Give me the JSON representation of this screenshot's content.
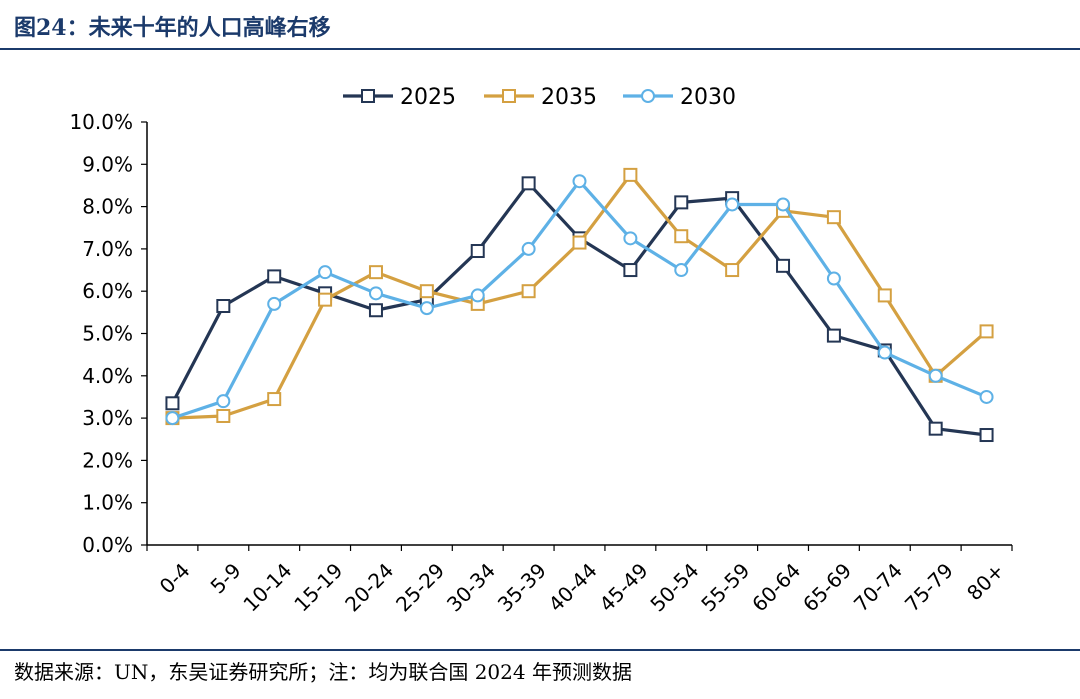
{
  "page": {
    "title": "图24：未来十年的人口高峰右移",
    "source": "数据来源：UN，东吴证券研究所；注：均为联合国 2024 年预测数据"
  },
  "chart_data": {
    "type": "line",
    "categories": [
      "0-4",
      "5-9",
      "10-14",
      "15-19",
      "20-24",
      "25-29",
      "30-34",
      "35-39",
      "40-44",
      "45-49",
      "50-54",
      "55-59",
      "60-64",
      "65-69",
      "70-74",
      "75-79",
      "80+"
    ],
    "series": [
      {
        "name": "2025",
        "color": "#243654",
        "marker": "square",
        "values": [
          3.35,
          5.65,
          6.35,
          5.95,
          5.55,
          5.8,
          6.95,
          8.55,
          7.25,
          6.5,
          8.1,
          8.2,
          6.6,
          4.95,
          4.6,
          2.75,
          2.6
        ]
      },
      {
        "name": "2035",
        "color": "#d4a041",
        "marker": "square",
        "values": [
          3.0,
          3.05,
          3.45,
          5.8,
          6.45,
          6.0,
          5.7,
          6.0,
          7.15,
          8.75,
          7.3,
          6.5,
          7.9,
          7.75,
          5.9,
          4.0,
          5.05
        ]
      },
      {
        "name": "2030",
        "color": "#5eb1e6",
        "marker": "circle",
        "values": [
          3.0,
          3.4,
          5.7,
          6.45,
          5.95,
          5.6,
          5.9,
          7.0,
          8.6,
          7.25,
          6.5,
          8.05,
          8.05,
          6.3,
          4.55,
          4.0,
          3.5
        ]
      }
    ],
    "ylim": [
      0,
      10
    ],
    "yticks": [
      "0.0%",
      "1.0%",
      "2.0%",
      "3.0%",
      "4.0%",
      "5.0%",
      "6.0%",
      "7.0%",
      "8.0%",
      "9.0%",
      "10.0%"
    ],
    "legend_position": "top-center",
    "grid": false
  }
}
